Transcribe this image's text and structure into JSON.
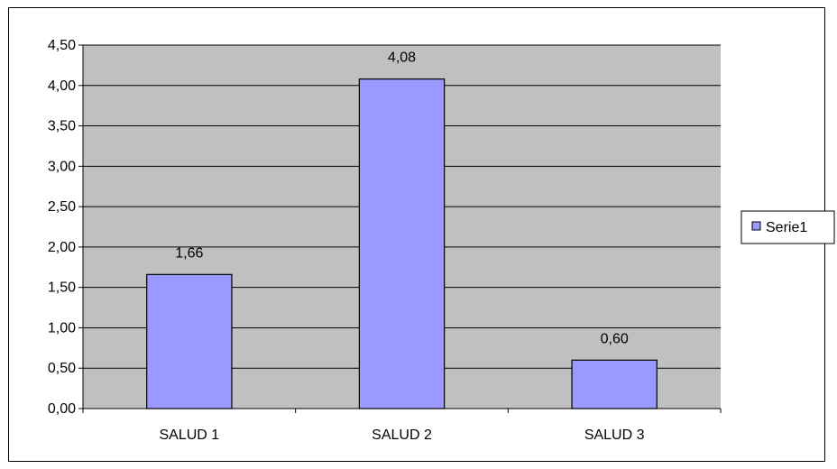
{
  "chart_data": {
    "type": "bar",
    "categories": [
      "SALUD 1",
      "SALUD 2",
      "SALUD 3"
    ],
    "series": [
      {
        "name": "Serie1",
        "values": [
          1.66,
          4.08,
          0.6
        ]
      }
    ],
    "data_labels": [
      "1,66",
      "4,08",
      "0,60"
    ],
    "yticks": [
      "0,00",
      "0,50",
      "1,00",
      "1,50",
      "2,00",
      "2,50",
      "3,00",
      "3,50",
      "4,00",
      "4,50"
    ],
    "ylim": [
      0,
      4.5
    ],
    "ytick_step": 0.5,
    "grid": true,
    "legend_position": "right",
    "colors": {
      "bar": "#9999ff",
      "plot_bg": "#c0c0c0",
      "bar_border": "#000000",
      "grid": "#000000"
    }
  }
}
